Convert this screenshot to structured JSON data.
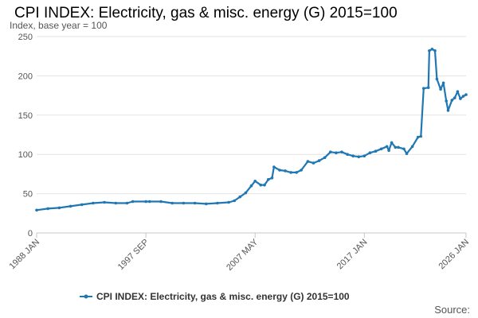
{
  "chart_data": {
    "type": "line",
    "title": "CPI INDEX: Electricity, gas & misc. energy (G) 2015=100",
    "subtitle": "Index, base year = 100",
    "source_label": "Source:",
    "xlabel": "",
    "ylabel": "",
    "ylim": [
      0,
      250
    ],
    "yticks": [
      "0",
      "50",
      "100",
      "150",
      "200",
      "250"
    ],
    "xlim": [
      "1988 JAN",
      "2026 JAN"
    ],
    "xticks": [
      "1988 JAN",
      "1997 SEP",
      "2007 MAY",
      "2017 JAN",
      "2026 JAN"
    ],
    "grid": true,
    "legend_position": "bottom",
    "color": "#1f77b4",
    "series": [
      {
        "name": "CPI INDEX: Electricity, gas & misc. energy (G) 2015=100",
        "points": [
          [
            "1988 JAN",
            29
          ],
          [
            "1989 JAN",
            31
          ],
          [
            "1990 JAN",
            32
          ],
          [
            "1991 JAN",
            34
          ],
          [
            "1992 JAN",
            36
          ],
          [
            "1993 JAN",
            38
          ],
          [
            "1994 JAN",
            39
          ],
          [
            "1995 JAN",
            38
          ],
          [
            "1996 JAN",
            38
          ],
          [
            "1996 JUL",
            40
          ],
          [
            "1997 SEP",
            40
          ],
          [
            "1998 JAN",
            40
          ],
          [
            "1999 JAN",
            40
          ],
          [
            "2000 JAN",
            38
          ],
          [
            "2001 JAN",
            38
          ],
          [
            "2002 JAN",
            38
          ],
          [
            "2003 JAN",
            37
          ],
          [
            "2004 JAN",
            38
          ],
          [
            "2005 JAN",
            39
          ],
          [
            "2005 JUL",
            41
          ],
          [
            "2006 JAN",
            46
          ],
          [
            "2006 JUL",
            51
          ],
          [
            "2007 JAN",
            60
          ],
          [
            "2007 MAY",
            66
          ],
          [
            "2007 NOV",
            61
          ],
          [
            "2008 MAR",
            61
          ],
          [
            "2008 JUL",
            68
          ],
          [
            "2008 NOV",
            70
          ],
          [
            "2009 JAN",
            84
          ],
          [
            "2009 JUL",
            80
          ],
          [
            "2010 JAN",
            79
          ],
          [
            "2010 JUL",
            77
          ],
          [
            "2011 JAN",
            77
          ],
          [
            "2011 JUN",
            80
          ],
          [
            "2012 JAN",
            91
          ],
          [
            "2012 JUL",
            89
          ],
          [
            "2013 JAN",
            92
          ],
          [
            "2013 JUL",
            96
          ],
          [
            "2014 JAN",
            103
          ],
          [
            "2014 JUL",
            102
          ],
          [
            "2015 JAN",
            103
          ],
          [
            "2015 JUL",
            100
          ],
          [
            "2016 JAN",
            98
          ],
          [
            "2016 JUL",
            97
          ],
          [
            "2017 JAN",
            98
          ],
          [
            "2017 JUL",
            102
          ],
          [
            "2018 JAN",
            104
          ],
          [
            "2018 JUL",
            107
          ],
          [
            "2019 JAN",
            110
          ],
          [
            "2019 MAR",
            105
          ],
          [
            "2019 JUN",
            115
          ],
          [
            "2019 OCT",
            109
          ],
          [
            "2020 JAN",
            109
          ],
          [
            "2020 JUL",
            107
          ],
          [
            "2020 OCT",
            101
          ],
          [
            "2021 APR",
            110
          ],
          [
            "2021 OCT",
            122
          ],
          [
            "2022 JAN",
            123
          ],
          [
            "2022 APR",
            184
          ],
          [
            "2022 SEP",
            185
          ],
          [
            "2022 OCT",
            232
          ],
          [
            "2023 JAN",
            234
          ],
          [
            "2023 APR",
            232
          ],
          [
            "2023 JUN",
            196
          ],
          [
            "2023 OCT",
            183
          ],
          [
            "2024 JAN",
            191
          ],
          [
            "2024 APR",
            168
          ],
          [
            "2024 JUN",
            156
          ],
          [
            "2024 OCT",
            169
          ],
          [
            "2025 JAN",
            172
          ],
          [
            "2025 APR",
            180
          ],
          [
            "2025 JUL",
            171
          ],
          [
            "2025 OCT",
            174
          ],
          [
            "2026 JAN",
            176
          ]
        ]
      }
    ]
  }
}
